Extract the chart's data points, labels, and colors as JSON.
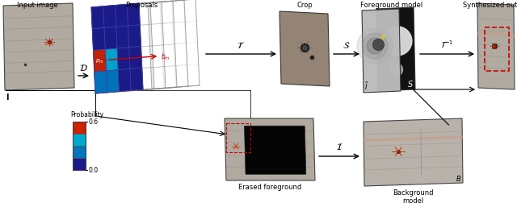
{
  "bg_color": "#ffffff",
  "input_image_label": "Input image",
  "proposals_label": "Proposals",
  "crop_label": "Crop",
  "foreground_model_label": "Foreground model",
  "synthesized_label": "Synthesized output",
  "erased_label": "Erased foreground",
  "background_model_label": "Background\nmodel",
  "prob_label": "Probability",
  "prob_high": "0.6",
  "prob_low": "0.0",
  "label_I": "I",
  "label_B": "B",
  "label_i_tilde": "$\\tilde{I}$",
  "label_S": "S",
  "D_arrow": "$\\mathcal{D}$",
  "T_arrow": "$\\mathcal{T}$",
  "S_arrow": "$\\mathcal{S}$",
  "Tinv_arrow": "$\\mathcal{T}^{-1}$",
  "I_arrow": "$\\mathcal{I}$",
  "cell_red": "#cc2200",
  "cell_cyan": "#00aacc",
  "cell_cyan2": "#0077bb",
  "cell_darkblue": "#1a1a88",
  "grid_line": "#4444aa",
  "depth_line": "#888888",
  "arrow_color": "#111111",
  "red_dashed": "#cc0000"
}
